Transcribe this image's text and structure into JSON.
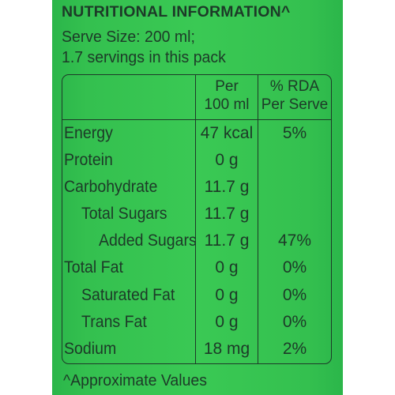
{
  "title": "NUTRITIONAL INFORMATION^",
  "serve_size": "Serve Size: 200 ml;",
  "servings": "1.7 servings in this pack",
  "table": {
    "header_col2_line1": "Per",
    "header_col2_line2": "100 ml",
    "header_col3_line1": "% RDA",
    "header_col3_line2": "Per Serve",
    "rows": [
      {
        "label": "Energy",
        "per100": "47 kcal",
        "rda": "5%"
      },
      {
        "label": "Protein",
        "per100": "0 g",
        "rda": ""
      },
      {
        "label": "Carbohydrate",
        "per100": "11.7 g",
        "rda": ""
      },
      {
        "label": "Total Sugars",
        "per100": "11.7 g",
        "rda": ""
      },
      {
        "label": "Added Sugars",
        "per100": "11.7 g",
        "rda": "47%"
      },
      {
        "label": "Total Fat",
        "per100": "0 g",
        "rda": "0%"
      },
      {
        "label": "Saturated Fat",
        "per100": "0 g",
        "rda": "0%"
      },
      {
        "label": "Trans Fat",
        "per100": "0 g",
        "rda": "0%"
      },
      {
        "label": "Sodium",
        "per100": "18 mg",
        "rda": "2%"
      }
    ]
  },
  "footnote": "^Approximate Values",
  "colors": {
    "background": "#3ac954",
    "text": "#1d3a28"
  }
}
